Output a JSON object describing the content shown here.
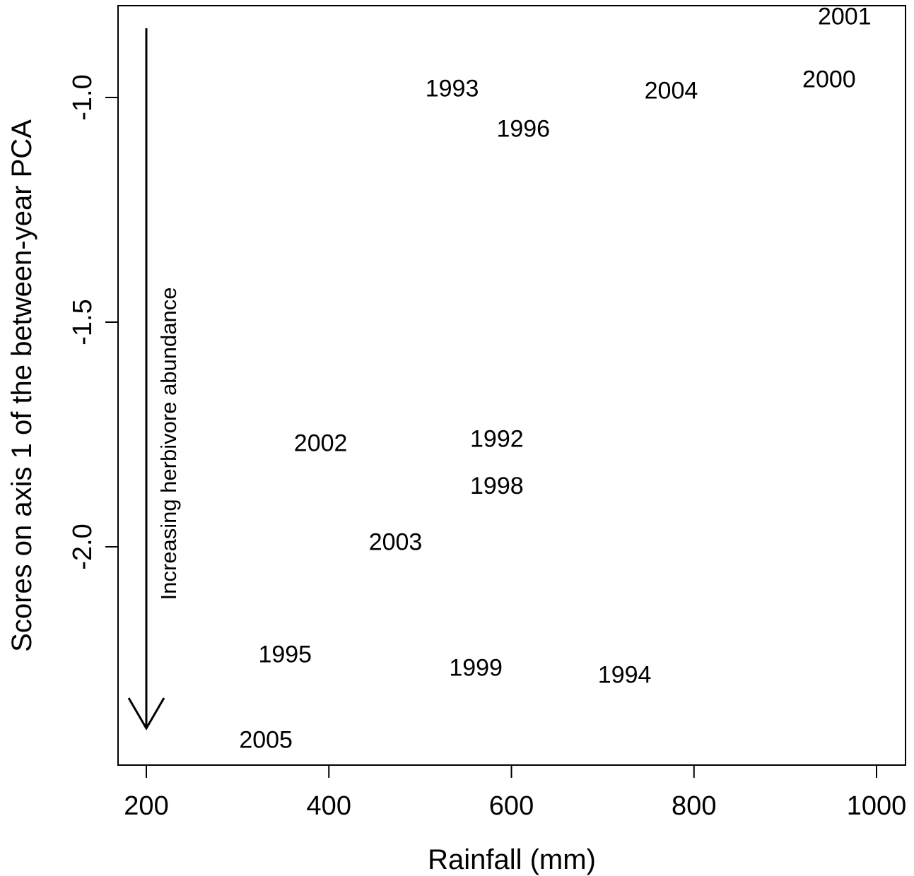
{
  "chart_data": {
    "type": "scatter",
    "title": "",
    "xlabel": "Rainfall (mm)",
    "ylabel": "Scores on axis 1 of the between-year PCA",
    "xlim": [
      170,
      1030
    ],
    "ylim": [
      -2.48,
      -0.8
    ],
    "xticks": [
      200,
      400,
      600,
      800,
      1000
    ],
    "xtick_labels": [
      "200",
      "400",
      "600",
      "800",
      "1000"
    ],
    "yticks": [
      -1.0,
      -1.5,
      -2.0
    ],
    "ytick_labels": [
      "-1.0",
      "-1.5",
      "-2.0"
    ],
    "grid": false,
    "marker": "text label (year)",
    "points": [
      {
        "label": "2001",
        "x": 965,
        "y": -0.82
      },
      {
        "label": "2000",
        "x": 948,
        "y": -0.96
      },
      {
        "label": "1993",
        "x": 535,
        "y": -0.98
      },
      {
        "label": "2004",
        "x": 775,
        "y": -0.985
      },
      {
        "label": "1996",
        "x": 613,
        "y": -1.07
      },
      {
        "label": "2002",
        "x": 391,
        "y": -1.77
      },
      {
        "label": "1992",
        "x": 584,
        "y": -1.76
      },
      {
        "label": "1998",
        "x": 584,
        "y": -1.865
      },
      {
        "label": "2003",
        "x": 473,
        "y": -1.99
      },
      {
        "label": "1995",
        "x": 352,
        "y": -2.24
      },
      {
        "label": "1999",
        "x": 561,
        "y": -2.27
      },
      {
        "label": "1994",
        "x": 724,
        "y": -2.285
      },
      {
        "label": "2005",
        "x": 331,
        "y": -2.43
      }
    ],
    "annotation": {
      "text": "Increasing herbivore abundance",
      "arrow": "downward, at x = 200 from top of plot to bottom"
    }
  }
}
